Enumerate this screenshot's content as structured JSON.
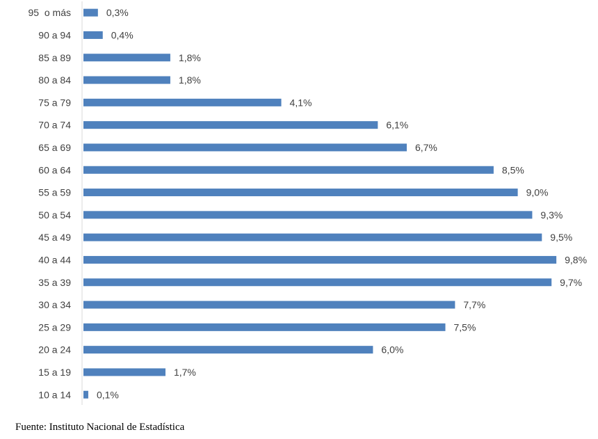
{
  "chart_data": {
    "type": "bar",
    "orientation": "horizontal",
    "categories": [
      "95  o más",
      "90 a 94",
      "85 a 89",
      "80 a 84",
      "75 a 79",
      "70 a 74",
      "65 a 69",
      "60 a 64",
      "55 a 59",
      "50 a 54",
      "45 a 49",
      "40 a 44",
      "35 a 39",
      "30 a 34",
      "25 a 29",
      "20 a 24",
      "15 a 19",
      "10 a 14"
    ],
    "values": [
      0.3,
      0.4,
      1.8,
      1.8,
      4.1,
      6.1,
      6.7,
      8.5,
      9.0,
      9.3,
      9.5,
      9.8,
      9.7,
      7.7,
      7.5,
      6.0,
      1.7,
      0.1
    ],
    "value_labels": [
      "0,3%",
      "0,4%",
      "1,8%",
      "1,8%",
      "4,1%",
      "6,1%",
      "6,7%",
      "8,5%",
      "9,0%",
      "9,3%",
      "9,5%",
      "9,8%",
      "9,7%",
      "7,7%",
      "7,5%",
      "6,0%",
      "1,7%",
      "0,1%"
    ],
    "xlim": [
      0,
      9.8
    ],
    "bar_color": "#4f81bd",
    "grid": false,
    "legend": "none"
  },
  "source": "Fuente: Instituto Nacional de Estadística"
}
